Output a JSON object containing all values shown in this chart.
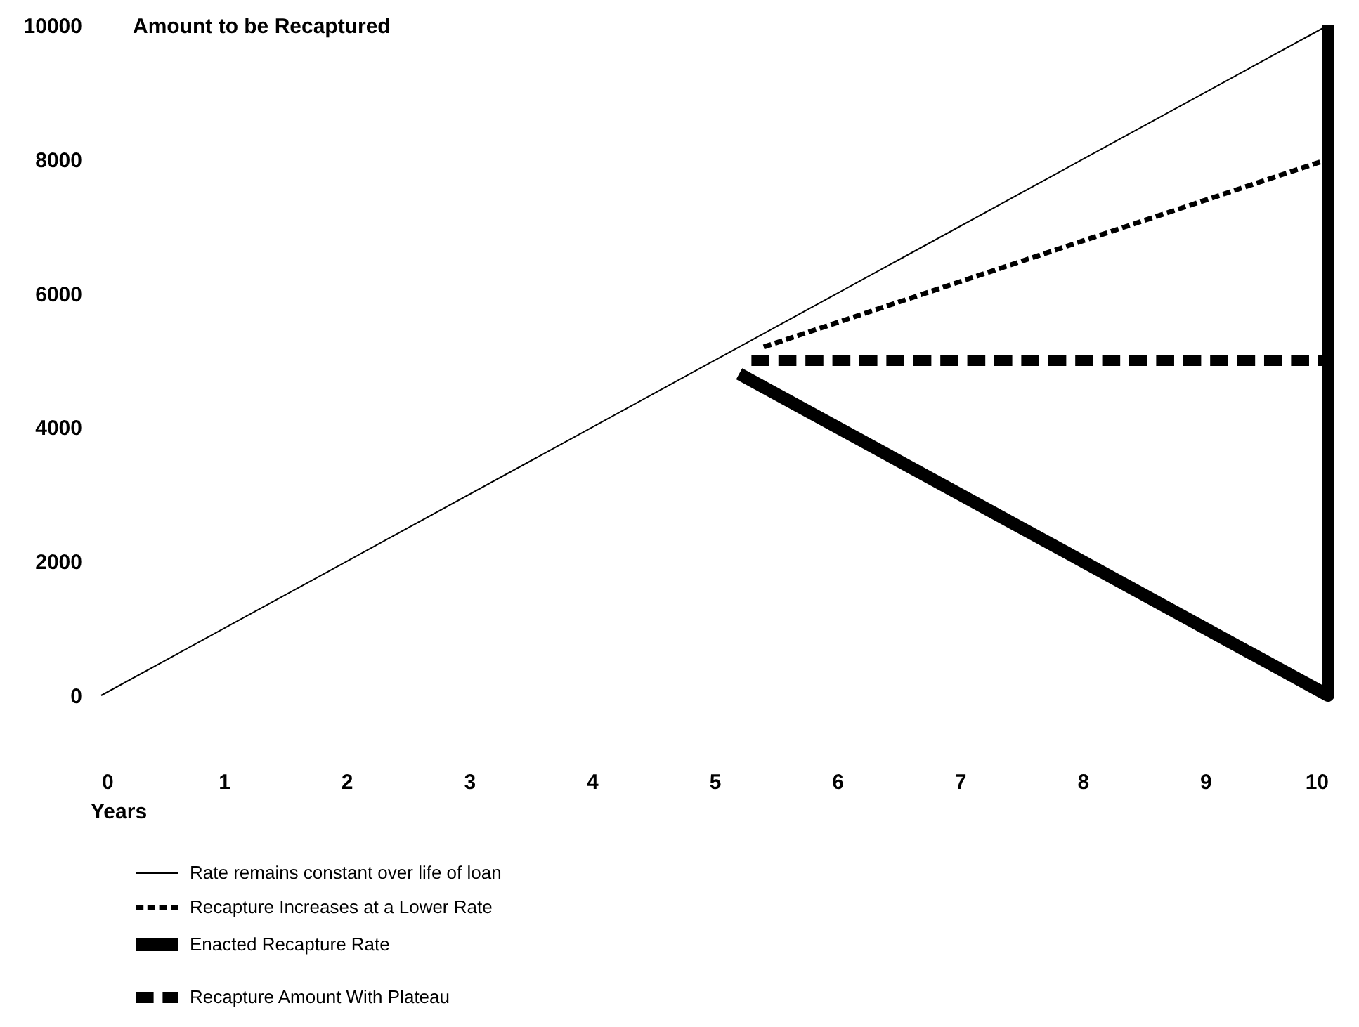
{
  "chart_data": {
    "type": "line",
    "xlabel": "Years",
    "ylabel": "Amount to be Recaptured",
    "series": [
      {
        "name": "Rate remains constant over life of loan",
        "color": "#000000",
        "line_style": "solid",
        "x": [
          0,
          10
        ],
        "values": [
          0,
          10000
        ]
      },
      {
        "name": "Recapture Increases at a Lower Rate",
        "color": "#000000",
        "line_style": "dashed",
        "x": [
          5.4,
          10
        ],
        "values": [
          5200,
          8000
        ]
      },
      {
        "name": "Enacted Recapture Rate",
        "color": "#000000",
        "line_style": "solid",
        "x": [
          5.2,
          10,
          10
        ],
        "values": [
          4800,
          0,
          10000
        ]
      },
      {
        "name": "Recapture Amount With Plateau",
        "color": "#000000",
        "line_style": "dashed",
        "x": [
          5.3,
          10
        ],
        "values": [
          5000,
          5000
        ]
      }
    ],
    "xlim": [
      0,
      10
    ],
    "xticks": [
      0,
      1,
      2,
      3,
      4,
      5,
      6,
      7,
      8,
      9,
      10
    ],
    "ylim": [
      0,
      10000
    ],
    "yticks": [
      0,
      2000,
      4000,
      6000,
      8000,
      10000
    ],
    "grid": false,
    "legend": "bottom left",
    "marker": "none"
  }
}
